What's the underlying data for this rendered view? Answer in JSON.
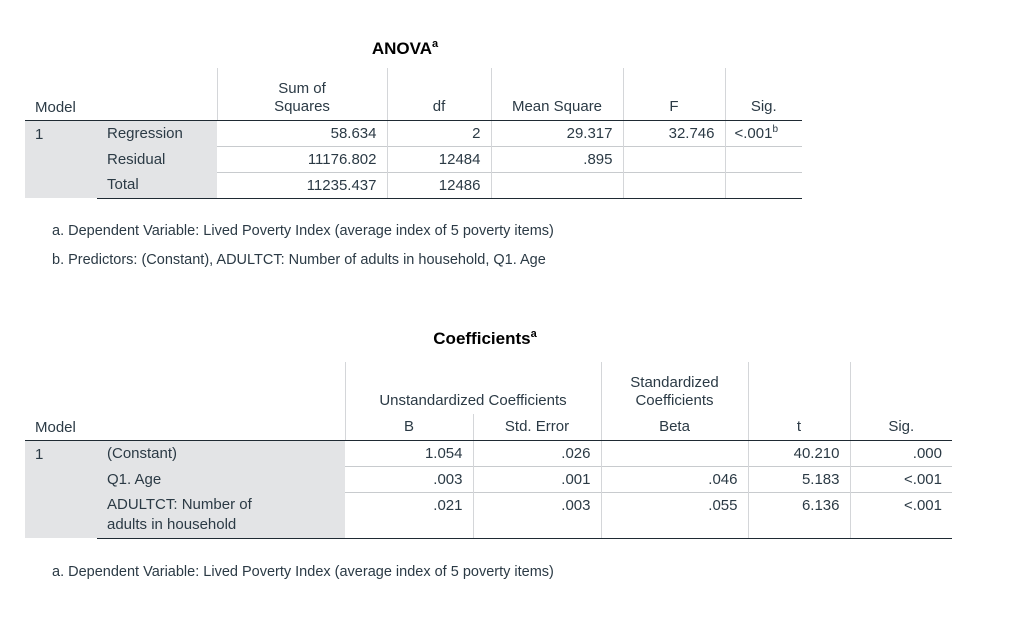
{
  "anova": {
    "title": "ANOVA",
    "title_sup": "a",
    "headers": {
      "model": "Model",
      "sum_of_squares": "Sum of\nSquares",
      "df": "df",
      "mean_square": "Mean Square",
      "f": "F",
      "sig": "Sig."
    },
    "model_number": "1",
    "rows": [
      {
        "label": "Regression",
        "ss": "58.634",
        "df": "2",
        "ms": "29.317",
        "f": "32.746",
        "sig": "<.001",
        "sig_sup": "b"
      },
      {
        "label": "Residual",
        "ss": "11176.802",
        "df": "12484",
        "ms": ".895",
        "f": "",
        "sig": ""
      },
      {
        "label": "Total",
        "ss": "11235.437",
        "df": "12486",
        "ms": "",
        "f": "",
        "sig": ""
      }
    ],
    "footnotes": [
      "a. Dependent Variable: Lived Poverty Index (average index of 5 poverty items)",
      "b. Predictors: (Constant), ADULTCT: Number of adults in household, Q1. Age"
    ]
  },
  "coefficients": {
    "title": "Coefficients",
    "title_sup": "a",
    "headers": {
      "model": "Model",
      "unstandardized": "Unstandardized Coefficients",
      "standardized": "Standardized\nCoefficients",
      "b": "B",
      "std_error": "Std. Error",
      "beta": "Beta",
      "t": "t",
      "sig": "Sig."
    },
    "model_number": "1",
    "rows": [
      {
        "label": "(Constant)",
        "b": "1.054",
        "se": ".026",
        "beta": "",
        "t": "40.210",
        "sig": ".000"
      },
      {
        "label": "Q1. Age",
        "b": ".003",
        "se": ".001",
        "beta": ".046",
        "t": "5.183",
        "sig": "<.001"
      },
      {
        "label": "ADULTCT: Number of\nadults in household",
        "b": ".021",
        "se": ".003",
        "beta": ".055",
        "t": "6.136",
        "sig": "<.001"
      }
    ],
    "footnotes": [
      "a. Dependent Variable: Lived Poverty Index (average index of 5 poverty items)"
    ]
  }
}
